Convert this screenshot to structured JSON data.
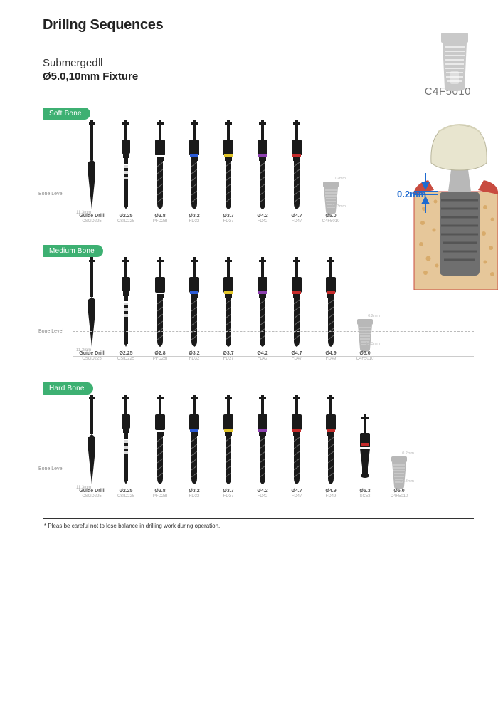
{
  "title": "Drillng Sequences",
  "subtitle1_pre": "Submerged",
  "subtitle1_roman": "Ⅱ",
  "subtitle2": "Ø5.0,10mm Fixture",
  "product_code": "C4F5010",
  "crown_depth": "0.2mm",
  "footnote": "* Pleas be careful not to lose balance in drilling work during operation.",
  "badge_color": "#3db072",
  "drill_color": "#1a1a1a",
  "implant_gray": "#b8b8b8",
  "bone_label": "Bone Level",
  "depth_label": "11.3mm",
  "implant_depth_top": "0.2mm",
  "implant_depth_bot": "10.3mm",
  "sections": [
    {
      "badge": "Soft Bone",
      "drills": [
        {
          "kind": "guide",
          "label": "Guide Drill",
          "sub": "CSGD225",
          "band": null
        },
        {
          "kind": "init",
          "label": "Ø2.25",
          "sub": "CSID225",
          "band": null
        },
        {
          "kind": "twist",
          "label": "Ø2.8",
          "sub": "PFD28I",
          "band": null
        },
        {
          "kind": "twist",
          "label": "Ø3.2",
          "sub": "FD32",
          "band": "#2b5bd6"
        },
        {
          "kind": "twist",
          "label": "Ø3.7",
          "sub": "FD37",
          "band": "#e2c62b"
        },
        {
          "kind": "twist",
          "label": "Ø4.2",
          "sub": "FD42",
          "band": "#8c3fae"
        },
        {
          "kind": "twist",
          "label": "Ø4.7",
          "sub": "FD47",
          "band": "#c62b2b"
        }
      ],
      "implant": {
        "label": "Ø5.0",
        "sub": "C4F5010"
      }
    },
    {
      "badge": "Medium Bone",
      "drills": [
        {
          "kind": "guide",
          "label": "Guide Drill",
          "sub": "CSGD225",
          "band": null
        },
        {
          "kind": "init",
          "label": "Ø2.25",
          "sub": "CSID225",
          "band": null
        },
        {
          "kind": "twist",
          "label": "Ø2.8",
          "sub": "PFD28I",
          "band": null
        },
        {
          "kind": "twist",
          "label": "Ø3.2",
          "sub": "FD32",
          "band": "#2b5bd6"
        },
        {
          "kind": "twist",
          "label": "Ø3.7",
          "sub": "FD37",
          "band": "#e2c62b"
        },
        {
          "kind": "twist",
          "label": "Ø4.2",
          "sub": "FD42",
          "band": "#8c3fae"
        },
        {
          "kind": "twist",
          "label": "Ø4.7",
          "sub": "FD47",
          "band": "#c62b2b"
        },
        {
          "kind": "twist",
          "label": "Ø4.9",
          "sub": "FD49",
          "band": "#c62b2b"
        }
      ],
      "implant": {
        "label": "Ø5.0",
        "sub": "C4F5010"
      }
    },
    {
      "badge": "Hard Bone",
      "drills": [
        {
          "kind": "guide",
          "label": "Guide Drill",
          "sub": "CSGD225",
          "band": null
        },
        {
          "kind": "init",
          "label": "Ø2.25",
          "sub": "CSID225",
          "band": null
        },
        {
          "kind": "twist",
          "label": "Ø2.8",
          "sub": "PFD28I",
          "band": null
        },
        {
          "kind": "twist",
          "label": "Ø3.2",
          "sub": "FD32",
          "band": "#2b5bd6"
        },
        {
          "kind": "twist",
          "label": "Ø3.7",
          "sub": "FD37",
          "band": "#e2c62b"
        },
        {
          "kind": "twist",
          "label": "Ø4.2",
          "sub": "FD42",
          "band": "#8c3fae"
        },
        {
          "kind": "twist",
          "label": "Ø4.7",
          "sub": "FD47",
          "band": "#c62b2b"
        },
        {
          "kind": "twist",
          "label": "Ø4.9",
          "sub": "FD49",
          "band": "#c62b2b"
        },
        {
          "kind": "counter",
          "label": "Ø5.3",
          "sub": "SC53",
          "band": "#c62b2b"
        }
      ],
      "implant": {
        "label": "Ø5.0",
        "sub": "C4F5010"
      }
    }
  ]
}
